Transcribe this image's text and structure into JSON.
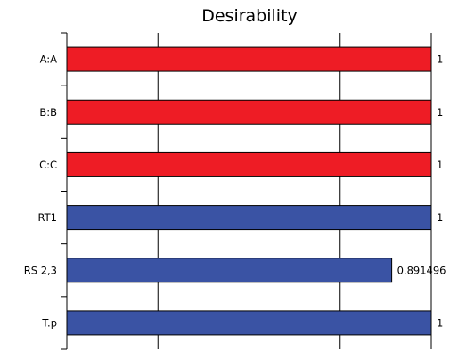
{
  "chart_data": {
    "type": "bar",
    "orientation": "horizontal",
    "title": "Desirability",
    "xlabel": "",
    "ylabel": "",
    "categories": [
      "A:A",
      "B:B",
      "C:C",
      "RT1",
      "RS 2,3",
      "T.p"
    ],
    "values": [
      1,
      1,
      1,
      1,
      0.891496,
      1
    ],
    "value_labels": [
      "1",
      "1",
      "1",
      "1",
      "0.891496",
      "1"
    ],
    "bar_colors": [
      "#ee1c25",
      "#ee1c25",
      "#ee1c25",
      "#3a53a4",
      "#3a53a4",
      "#3a53a4"
    ],
    "xlim": [
      0,
      1
    ],
    "grid": true,
    "legend": "none"
  }
}
